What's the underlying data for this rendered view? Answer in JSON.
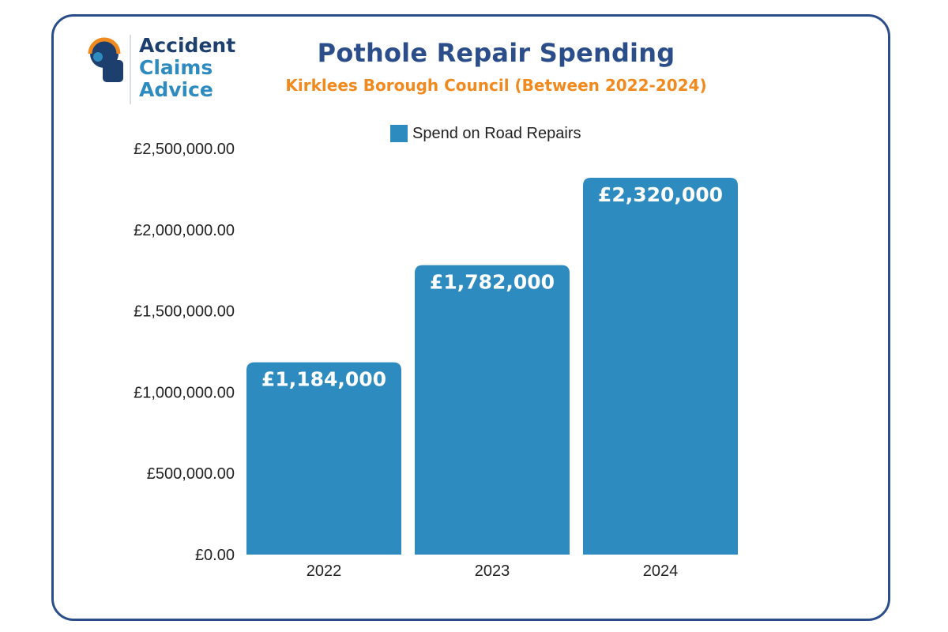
{
  "brand": {
    "line1": "Accident",
    "line2": "Claims",
    "line3": "Advice",
    "colors": {
      "dark": "#1d3f6e",
      "light": "#2e8bbf",
      "orange": "#f08a1e"
    }
  },
  "chart_data": {
    "type": "bar",
    "title": "Pothole Repair Spending",
    "subtitle": "Kirklees Borough Council (Between 2022-2024)",
    "xlabel": "",
    "ylabel": "",
    "categories": [
      "2022",
      "2023",
      "2024"
    ],
    "series": [
      {
        "name": "Spend on Road Repairs",
        "values": [
          1184000,
          1782000,
          2320000
        ],
        "labels": [
          "£1,184,000",
          "£1,782,000",
          "£2,320,000"
        ],
        "color": "#2e8bbf"
      }
    ],
    "ylim": [
      0,
      2500000
    ],
    "yticks": [
      0,
      500000,
      1000000,
      1500000,
      2000000,
      2500000
    ],
    "ytick_labels": [
      "£0.00",
      "£500,000.00",
      "£1,000,000.00",
      "£1,500,000.00",
      "£2,000,000.00",
      "£2,500,000.00"
    ],
    "grid": false,
    "legend_position": "top"
  }
}
